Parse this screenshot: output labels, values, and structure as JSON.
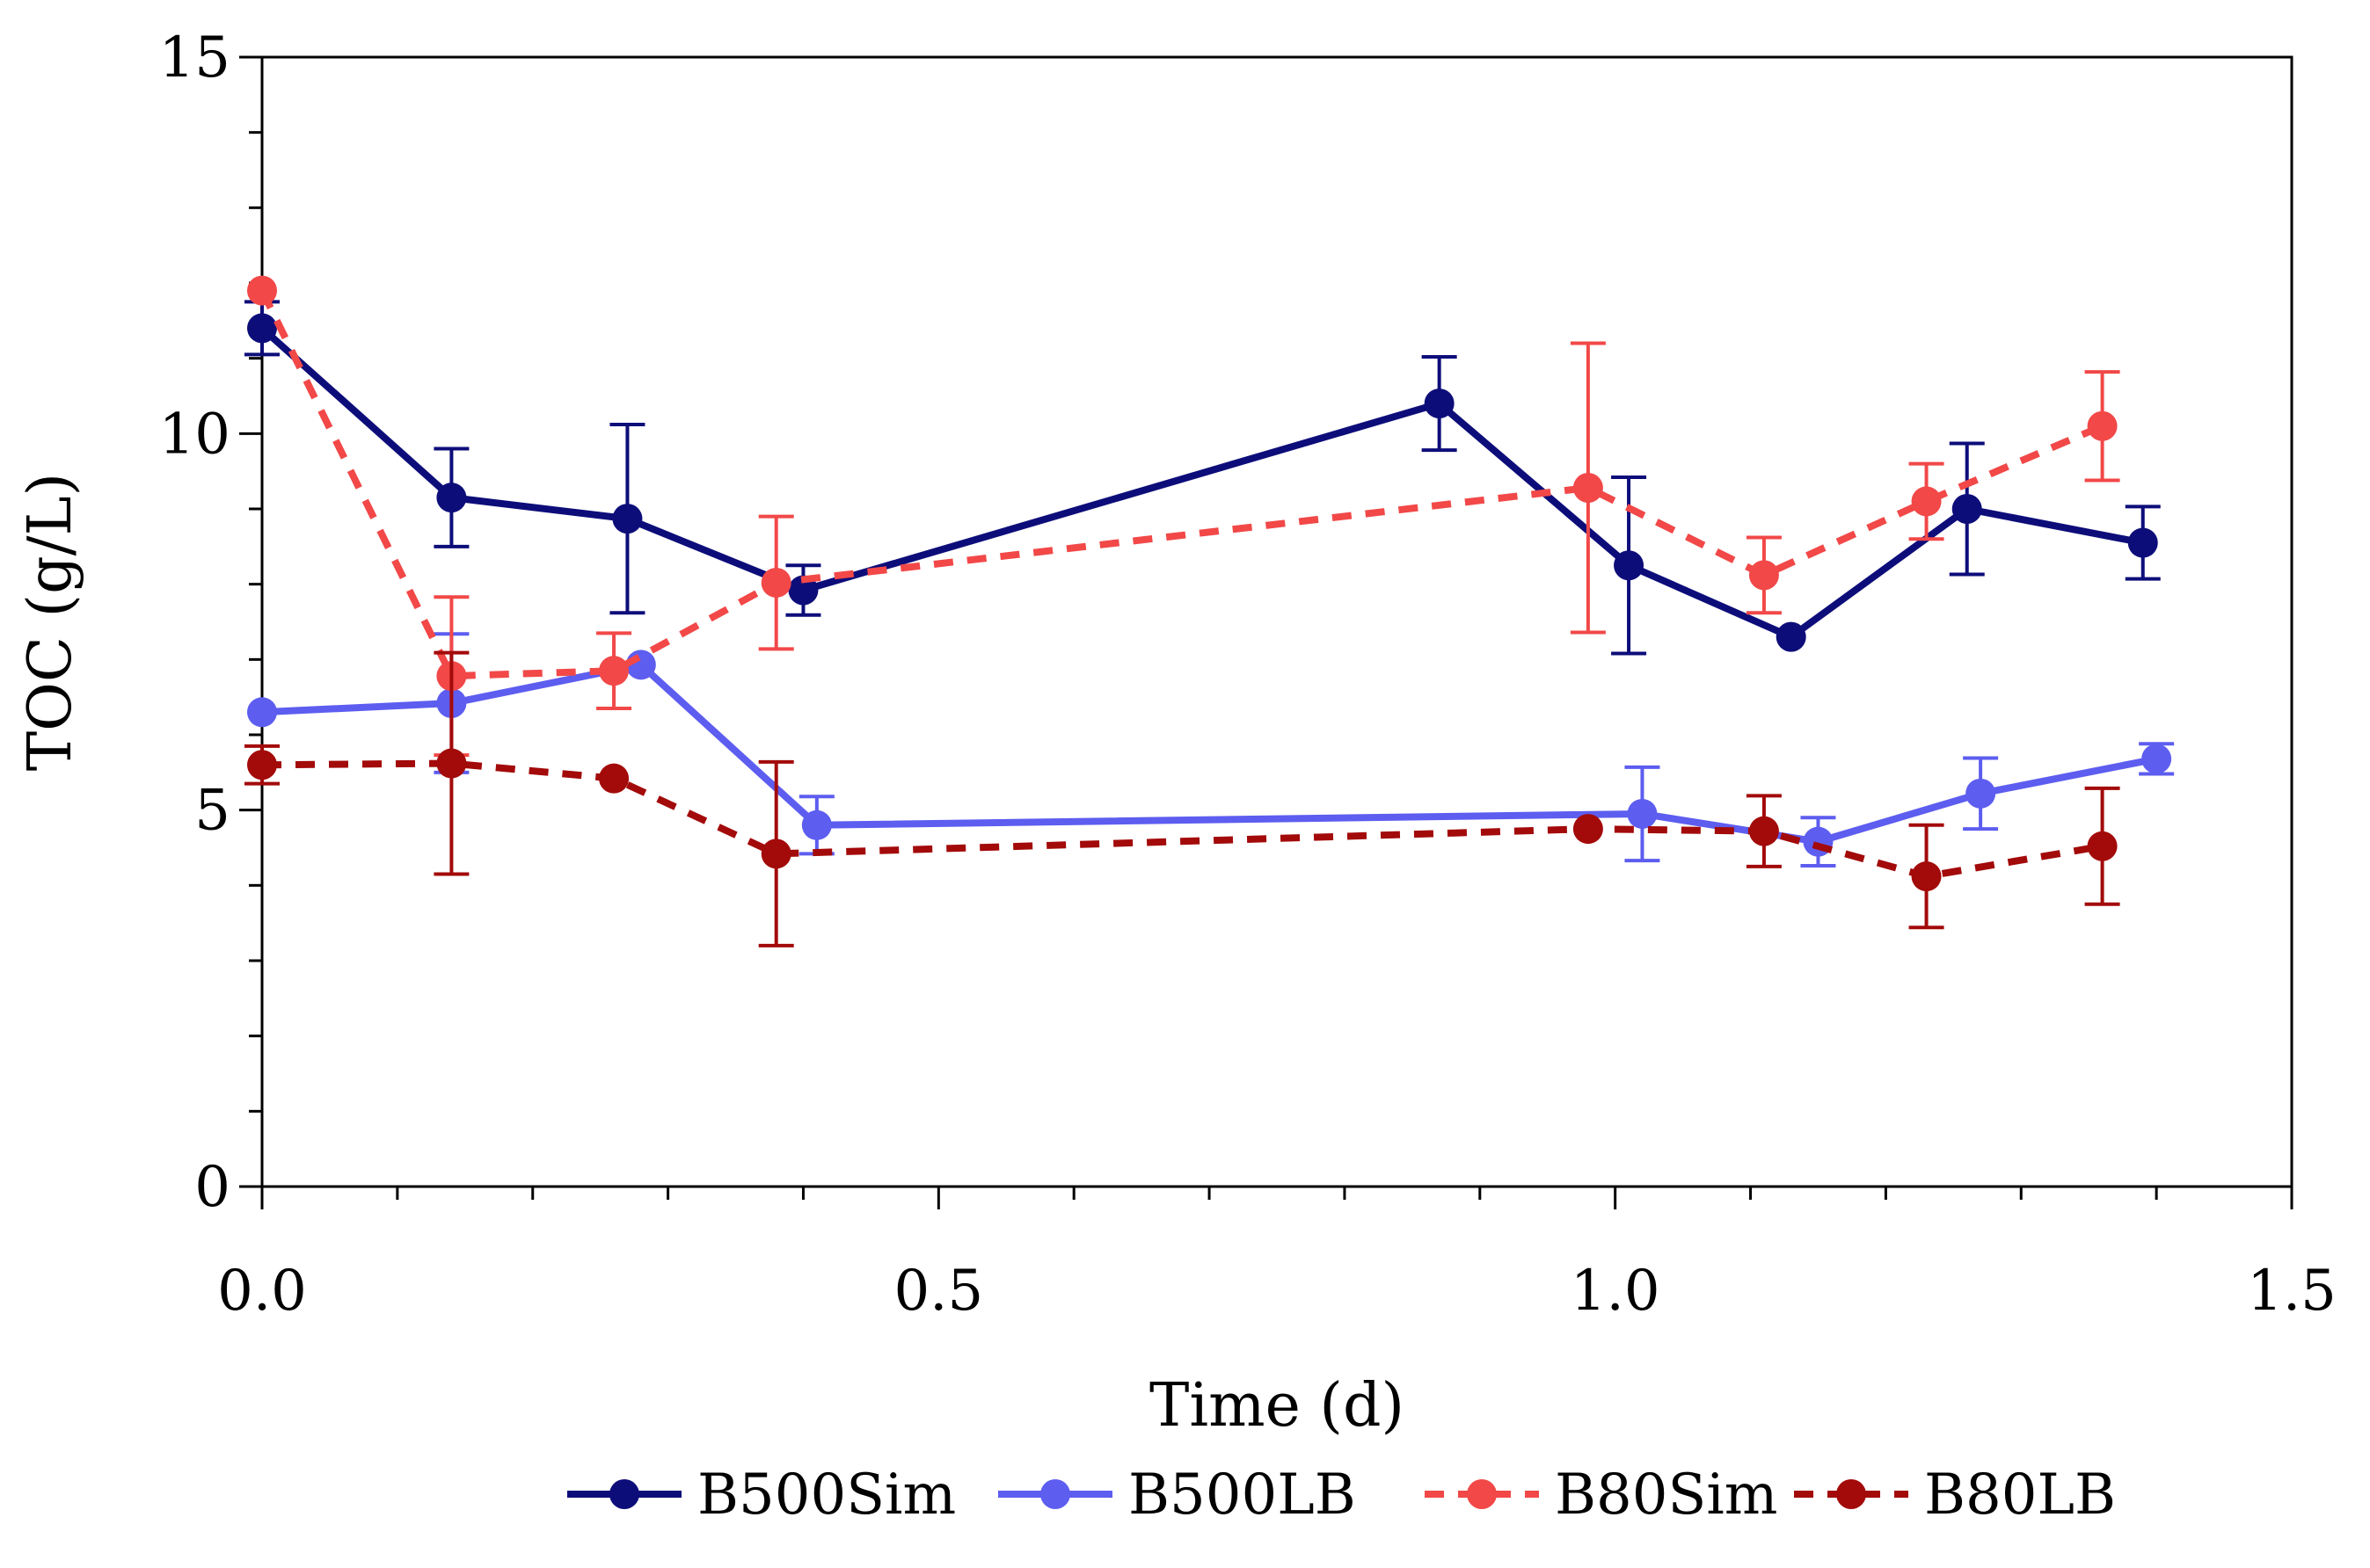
{
  "chart_data": {
    "type": "line",
    "title": "",
    "xlabel": "Time (d)",
    "ylabel": "TOC (g/L)",
    "xlim": [
      0,
      1.5
    ],
    "ylim": [
      0,
      15
    ],
    "x_ticks": [
      0.0,
      0.5,
      1.0,
      1.5
    ],
    "x_tick_labels": [
      "0.0",
      "0.5",
      "1.0",
      "1.5"
    ],
    "y_ticks": [
      0,
      5,
      10,
      15
    ],
    "y_tick_labels": [
      "0",
      "5",
      "10",
      "15"
    ],
    "x_minor_step": 0.1,
    "y_minor_step": 1,
    "grid": false,
    "legend_position": "bottom",
    "series": [
      {
        "name": "B500Sim",
        "color": "#0d0d7a",
        "dash": "solid",
        "x": [
          0.0,
          0.14,
          0.27,
          0.4,
          0.87,
          1.01,
          1.13,
          1.26,
          1.39
        ],
        "y": [
          11.4,
          9.15,
          8.87,
          7.92,
          10.4,
          8.25,
          7.3,
          9.0,
          8.55
        ],
        "err": [
          0.35,
          0.65,
          1.25,
          0.33,
          0.62,
          1.17,
          0.0,
          0.87,
          0.48
        ]
      },
      {
        "name": "B500LB",
        "color": "#5d5df0",
        "dash": "solid",
        "x": [
          0.0,
          0.14,
          0.28,
          0.41,
          1.02,
          1.15,
          1.27,
          1.4
        ],
        "y": [
          6.3,
          6.42,
          6.93,
          4.8,
          4.95,
          4.58,
          5.22,
          5.68
        ],
        "err": [
          0.0,
          0.92,
          0.0,
          0.38,
          0.62,
          0.32,
          0.47,
          0.2
        ]
      },
      {
        "name": "B80Sim",
        "color": "#f24848",
        "dash": "dashed",
        "x": [
          0.0,
          0.14,
          0.26,
          0.38,
          0.98,
          1.11,
          1.23,
          1.36
        ],
        "y": [
          11.9,
          6.78,
          6.85,
          8.02,
          9.28,
          8.12,
          9.1,
          10.1
        ],
        "err": [
          0.0,
          1.05,
          0.5,
          0.88,
          1.92,
          0.5,
          0.5,
          0.72
        ]
      },
      {
        "name": "B80LB",
        "color": "#a30a0a",
        "dash": "dashed",
        "x": [
          0.0,
          0.14,
          0.26,
          0.38,
          0.98,
          1.11,
          1.23,
          1.36
        ],
        "y": [
          5.6,
          5.62,
          5.42,
          4.42,
          4.75,
          4.72,
          4.12,
          4.52
        ],
        "err": [
          0.25,
          1.47,
          0.0,
          1.22,
          0.0,
          0.47,
          0.68,
          0.77
        ]
      }
    ]
  }
}
